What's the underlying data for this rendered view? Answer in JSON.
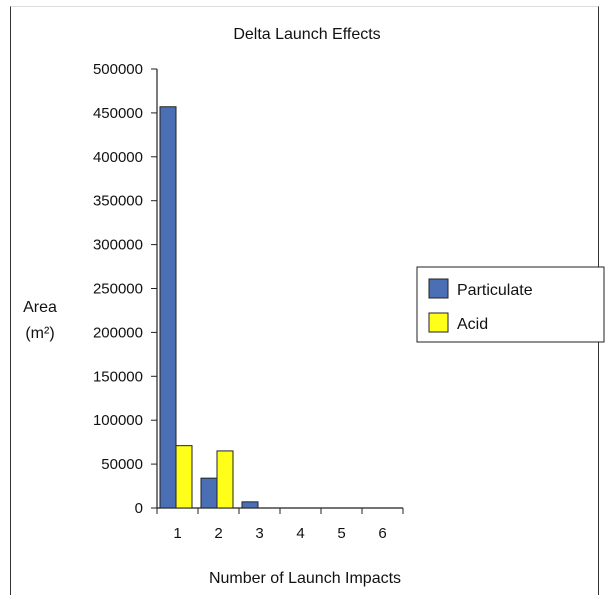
{
  "chart_data": {
    "type": "bar",
    "title": "Delta Launch Effects",
    "xlabel": "Number of Launch Impacts",
    "ylabel_line1": "Area",
    "ylabel_line2": "(m²)",
    "categories": [
      "1",
      "2",
      "3",
      "4",
      "5",
      "6"
    ],
    "series": [
      {
        "name": "Particulate",
        "color": "#4a6fb5",
        "values": [
          457000,
          34000,
          7000,
          0,
          0,
          0
        ]
      },
      {
        "name": "Acid",
        "color": "#ffff1a",
        "values": [
          71000,
          65000,
          0,
          0,
          0,
          0
        ]
      }
    ],
    "ylim": [
      0,
      500000
    ],
    "yticks": [
      "0",
      "50000",
      "100000",
      "150000",
      "200000",
      "250000",
      "300000",
      "350000",
      "400000",
      "450000",
      "500000"
    ],
    "grid": false,
    "legend_position": "right"
  }
}
